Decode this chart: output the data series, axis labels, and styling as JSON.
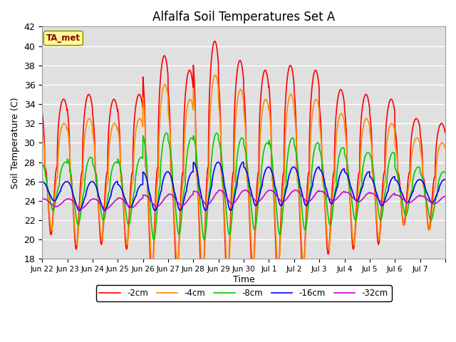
{
  "title": "Alfalfa Soil Temperatures Set A",
  "xlabel": "Time",
  "ylabel": "Soil Temperature (C)",
  "ylim": [
    18,
    42
  ],
  "background_color": "#e0e0e0",
  "figure_color": "#ffffff",
  "annotation_text": "TA_met",
  "annotation_color": "#8b0000",
  "annotation_bg": "#ffff99",
  "annotation_edge": "#999900",
  "legend_entries": [
    "-2cm",
    "-4cm",
    "-8cm",
    "-16cm",
    "-32cm"
  ],
  "line_colors": [
    "#ff0000",
    "#ff8c00",
    "#00cc00",
    "#0000ff",
    "#cc00cc"
  ],
  "line_widths": [
    1.2,
    1.2,
    1.2,
    1.2,
    1.2
  ],
  "xtick_labels": [
    "Jun 22",
    "Jun 23",
    "Jun 24",
    "Jun 25",
    "Jun 26",
    "Jun 27",
    "Jun 28",
    "Jun 29",
    "Jun 30",
    "Jul 1",
    "Jul 2",
    "Jul 3",
    "Jul 4",
    "Jul 5",
    "Jul 6",
    "Jul 7"
  ],
  "ytick_values": [
    18,
    20,
    22,
    24,
    26,
    28,
    30,
    32,
    34,
    36,
    38,
    40,
    42
  ],
  "num_days": 16,
  "pts_per_day": 144,
  "mean_2cm": 27.0,
  "mean_4cm": 26.5,
  "mean_8cm": 25.5,
  "mean_16cm": 25.0,
  "mean_32cm": 24.2,
  "base_amp_2cm": 8.0,
  "base_amp_4cm": 5.5,
  "base_amp_8cm": 3.5,
  "base_amp_16cm": 1.4,
  "base_amp_32cm": 0.5,
  "phase_2cm": 0.6,
  "phase_4cm": 0.62,
  "phase_8cm": 0.68,
  "phase_16cm": 0.73,
  "phase_32cm": 0.8,
  "day_amps_2cm": [
    7.0,
    8.0,
    7.5,
    8.0,
    11.5,
    10.5,
    13.0,
    11.5,
    10.5,
    11.0,
    10.5,
    8.5,
    8.0,
    7.5,
    5.5,
    5.5
  ],
  "day_amps_4cm": [
    5.5,
    6.5,
    6.0,
    6.5,
    9.5,
    8.5,
    10.5,
    9.5,
    8.5,
    9.0,
    8.5,
    7.0,
    6.5,
    6.0,
    4.5,
    4.5
  ],
  "day_amps_8cm": [
    2.5,
    3.5,
    3.0,
    3.5,
    5.5,
    5.0,
    5.5,
    5.0,
    4.5,
    5.0,
    4.5,
    4.0,
    3.5,
    3.5,
    2.5,
    2.5
  ],
  "day_amps_16cm": [
    1.0,
    1.5,
    1.5,
    1.2,
    2.0,
    2.0,
    2.5,
    2.5,
    2.0,
    2.0,
    2.0,
    1.8,
    1.5,
    1.5,
    1.2,
    1.2
  ],
  "day_amps_32cm": [
    0.4,
    0.5,
    0.5,
    0.5,
    0.6,
    0.6,
    0.7,
    0.7,
    0.6,
    0.6,
    0.6,
    0.5,
    0.5,
    0.5,
    0.4,
    0.4
  ],
  "day_means_2cm": [
    27.5,
    27.0,
    27.0,
    27.0,
    27.5,
    27.0,
    27.5,
    27.0,
    27.0,
    27.0,
    27.0,
    27.0,
    27.0,
    27.0,
    27.0,
    26.5
  ],
  "day_means_4cm": [
    26.5,
    26.0,
    26.0,
    26.0,
    26.5,
    26.0,
    26.5,
    26.0,
    26.0,
    26.0,
    26.0,
    26.0,
    26.0,
    26.0,
    26.0,
    25.5
  ],
  "day_means_8cm": [
    25.5,
    25.0,
    25.0,
    25.0,
    25.5,
    25.5,
    25.5,
    25.5,
    25.5,
    25.5,
    25.5,
    25.5,
    25.5,
    25.5,
    25.0,
    24.5
  ],
  "day_means_16cm": [
    25.0,
    24.5,
    24.5,
    24.5,
    25.0,
    25.0,
    25.5,
    25.5,
    25.5,
    25.5,
    25.5,
    25.5,
    25.5,
    25.0,
    25.0,
    25.0
  ],
  "day_means_32cm": [
    23.8,
    23.7,
    23.7,
    23.8,
    24.0,
    24.1,
    24.3,
    24.4,
    24.5,
    24.5,
    24.5,
    24.5,
    24.4,
    24.3,
    24.2,
    24.1
  ]
}
